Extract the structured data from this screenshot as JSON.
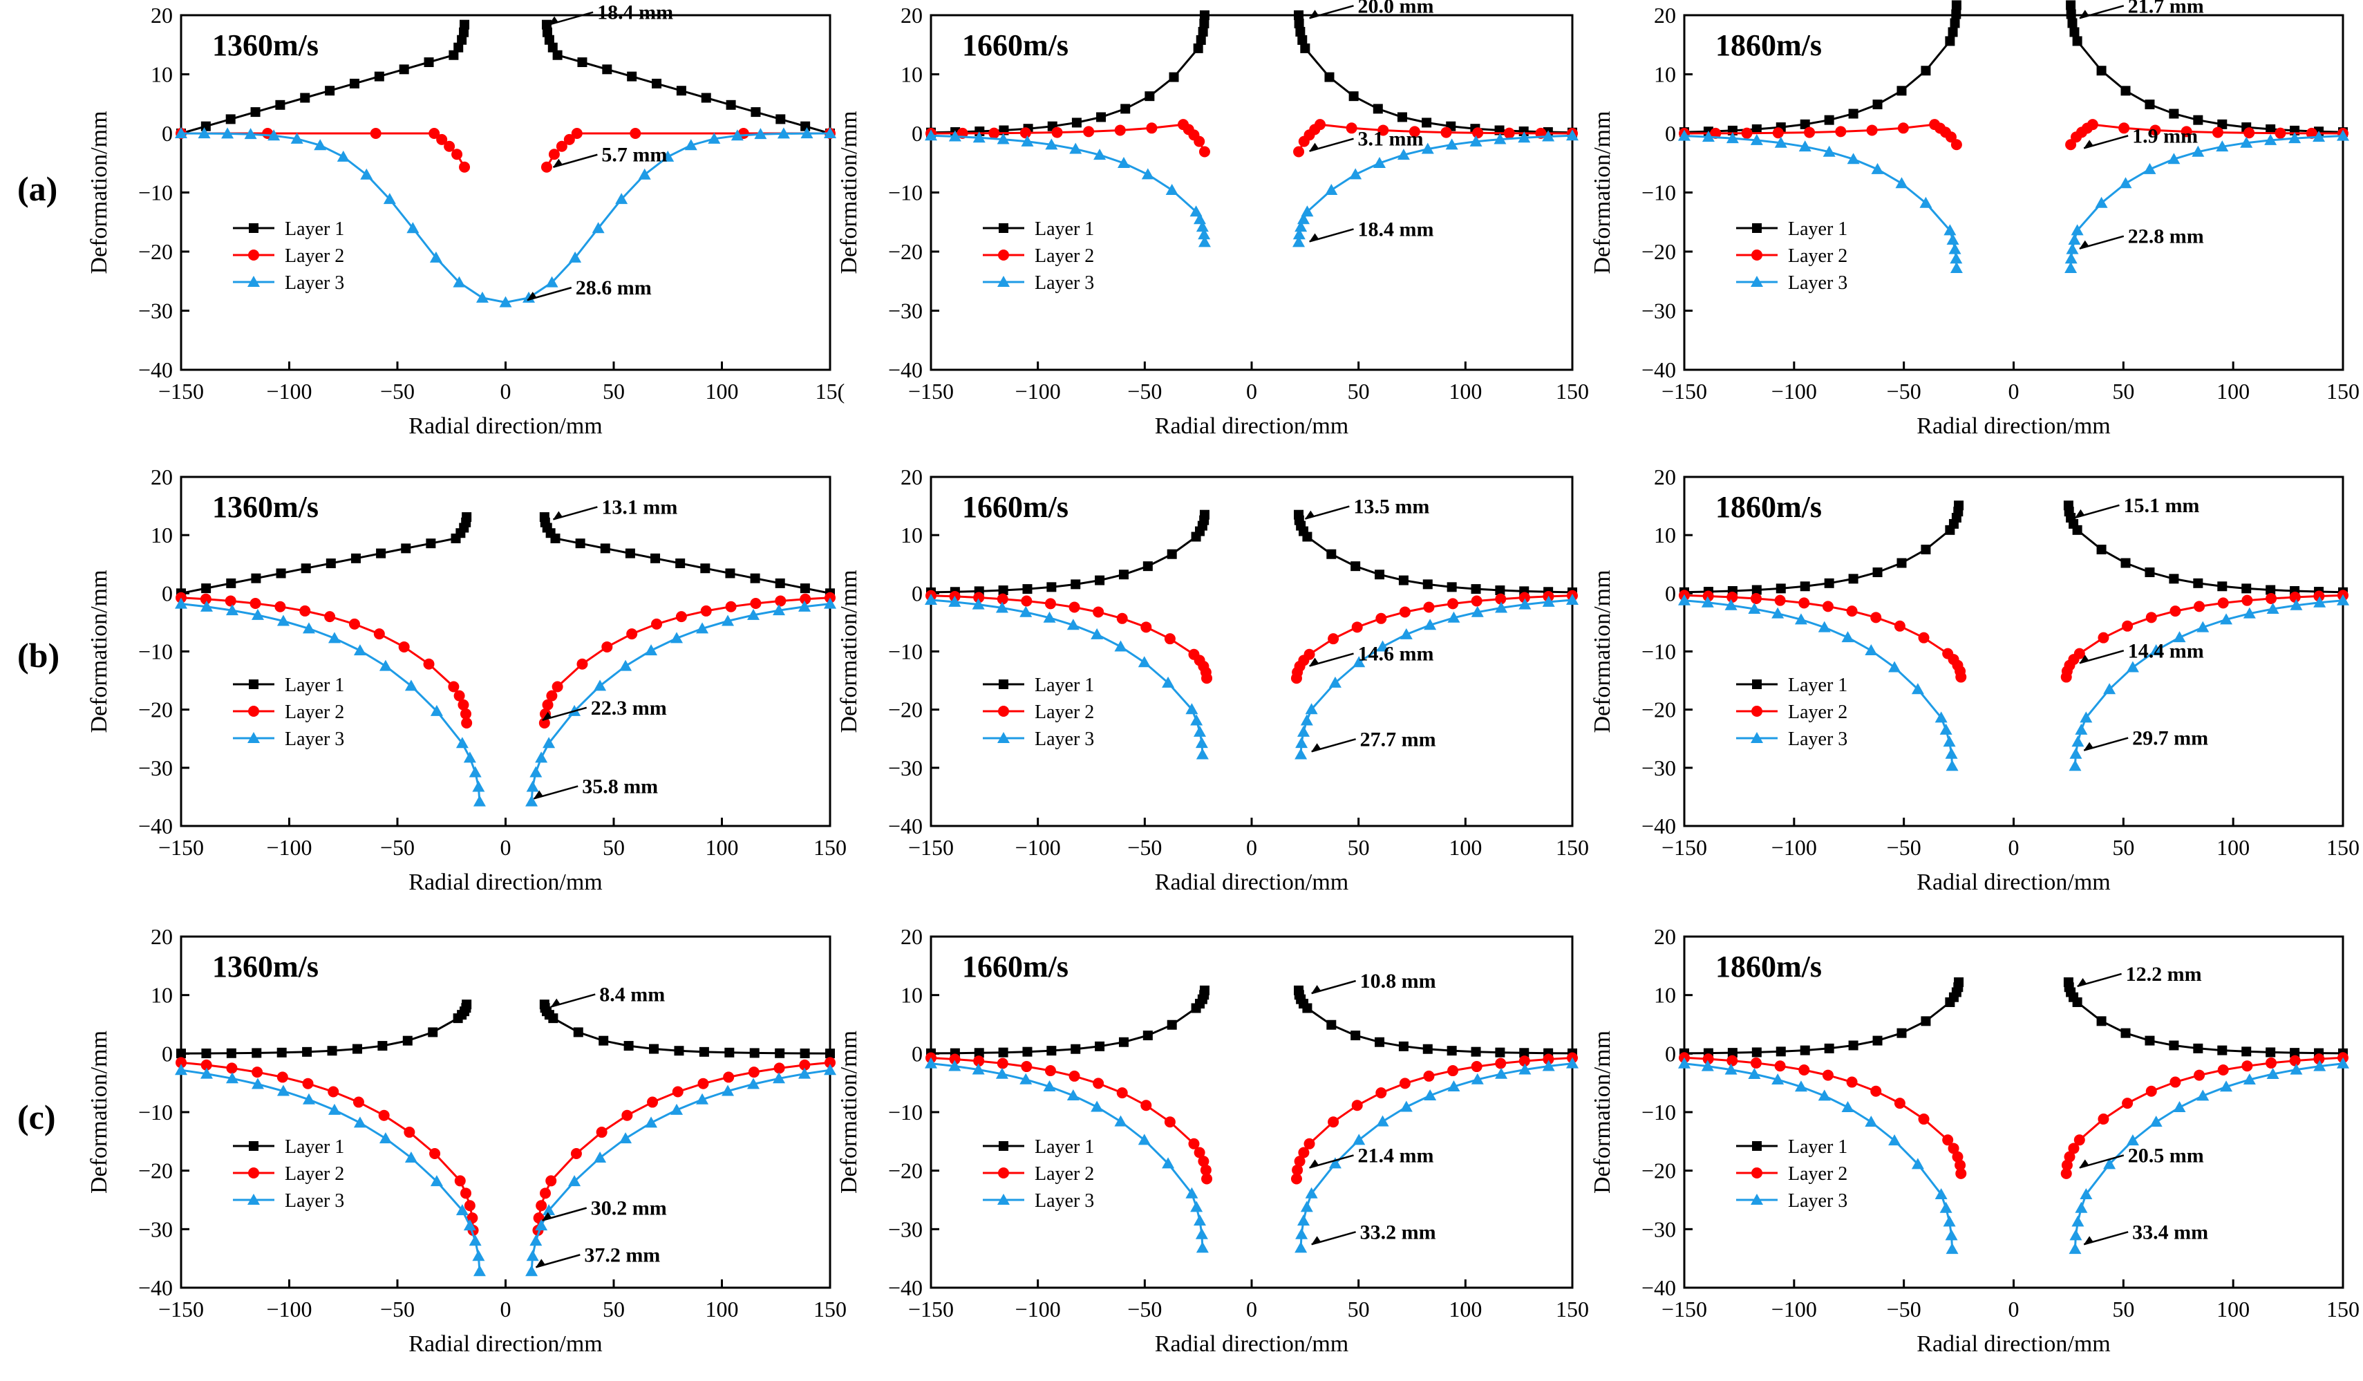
{
  "figure": {
    "row_labels": [
      "(a)",
      "(b)",
      "(c)"
    ],
    "speeds": [
      "1360m/s",
      "1660m/s",
      "1860m/s"
    ]
  },
  "colors": {
    "layer1": "#000000",
    "layer2": "#ff0000",
    "layer3": "#1e9be6"
  },
  "chart_data": [
    {
      "type": "line",
      "row": "(a)",
      "title": "1360m/s",
      "xlabel": "Radial direction/mm",
      "ylabel": "Deformation/mm",
      "xlim": [
        -150,
        150
      ],
      "ylim": [
        -40,
        20
      ],
      "xticks": [
        -150,
        -100,
        -50,
        0,
        50,
        100,
        150
      ],
      "yticks": [
        20,
        10,
        0,
        -10,
        -20,
        -30,
        -40
      ],
      "last_xtick_label": "15(",
      "series": [
        {
          "name": "Layer 1",
          "max": 18.4
        },
        {
          "name": "Layer 2",
          "max": 5.7
        },
        {
          "name": "Layer 3",
          "max": 28.6
        }
      ],
      "annotations": [
        {
          "text": "18.4 mm",
          "x": 20,
          "y": 18.4
        },
        {
          "text": "5.7 mm",
          "x": 22,
          "y": -5.7
        },
        {
          "text": "28.6 mm",
          "x": 10,
          "y": -28.2
        }
      ]
    },
    {
      "type": "line",
      "row": "(a)",
      "title": "1660m/s",
      "xlabel": "Radial direction/mm",
      "ylabel": "Deformation/mm",
      "xlim": [
        -150,
        150
      ],
      "ylim": [
        -40,
        20
      ],
      "xticks": [
        -150,
        -100,
        -50,
        0,
        50,
        100,
        150
      ],
      "yticks": [
        20,
        10,
        0,
        -10,
        -20,
        -30,
        -40
      ],
      "series": [
        {
          "name": "Layer 1",
          "max": 20.0
        },
        {
          "name": "Layer 2",
          "max": 3.1
        },
        {
          "name": "Layer 3",
          "max": 18.4
        }
      ],
      "annotations": [
        {
          "text": "20.0 mm",
          "x": 27,
          "y": 19.5
        },
        {
          "text": "3.1 mm",
          "x": 27,
          "y": -3.0
        },
        {
          "text": "18.4 mm",
          "x": 27,
          "y": -18.3
        }
      ]
    },
    {
      "type": "line",
      "row": "(a)",
      "title": "1860m/s",
      "xlabel": "Radial direction/mm",
      "ylabel": "Deformation/mm",
      "xlim": [
        -150,
        150
      ],
      "ylim": [
        -40,
        20
      ],
      "xticks": [
        -150,
        -100,
        -50,
        0,
        50,
        100,
        150
      ],
      "yticks": [
        20,
        10,
        0,
        -10,
        -20,
        -30,
        -40
      ],
      "series": [
        {
          "name": "Layer 1",
          "max": 21.7
        },
        {
          "name": "Layer 2",
          "max": 1.9
        },
        {
          "name": "Layer 3",
          "max": 22.8
        }
      ],
      "annotations": [
        {
          "text": "21.7 mm",
          "x": 30,
          "y": 19.5
        },
        {
          "text": "1.9 mm",
          "x": 32,
          "y": -2.5
        },
        {
          "text": "22.8 mm",
          "x": 30,
          "y": -19.5
        }
      ]
    },
    {
      "type": "line",
      "row": "(b)",
      "title": "1360m/s",
      "xlabel": "Radial direction/mm",
      "ylabel": "Deformation/mm",
      "xlim": [
        -150,
        150
      ],
      "ylim": [
        -40,
        20
      ],
      "xticks": [
        -150,
        -100,
        -50,
        0,
        50,
        100,
        150
      ],
      "yticks": [
        20,
        10,
        0,
        -10,
        -20,
        -30,
        -40
      ],
      "series": [
        {
          "name": "Layer 1",
          "max": 13.1
        },
        {
          "name": "Layer 2",
          "max": 22.3
        },
        {
          "name": "Layer 3",
          "max": 35.8
        }
      ],
      "annotations": [
        {
          "text": "13.1 mm",
          "x": 22,
          "y": 12.7
        },
        {
          "text": "22.3 mm",
          "x": 17,
          "y": -21.8
        },
        {
          "text": "35.8 mm",
          "x": 13,
          "y": -35.3
        }
      ]
    },
    {
      "type": "line",
      "row": "(b)",
      "title": "1660m/s",
      "xlabel": "Radial direction/mm",
      "ylabel": "Deformation/mm",
      "xlim": [
        -150,
        150
      ],
      "ylim": [
        -40,
        20
      ],
      "xticks": [
        -150,
        -100,
        -50,
        0,
        50,
        100,
        150
      ],
      "yticks": [
        20,
        10,
        0,
        -10,
        -20,
        -30,
        -40
      ],
      "series": [
        {
          "name": "Layer 1",
          "max": 13.5
        },
        {
          "name": "Layer 2",
          "max": 14.6
        },
        {
          "name": "Layer 3",
          "max": 27.7
        }
      ],
      "annotations": [
        {
          "text": "13.5 mm",
          "x": 25,
          "y": 12.8
        },
        {
          "text": "14.6 mm",
          "x": 27,
          "y": -12.5
        },
        {
          "text": "27.7 mm",
          "x": 28,
          "y": -27.2
        }
      ]
    },
    {
      "type": "line",
      "row": "(b)",
      "title": "1860m/s",
      "xlabel": "Radial direction/mm",
      "ylabel": "Deformation/mm",
      "xlim": [
        -150,
        150
      ],
      "ylim": [
        -40,
        20
      ],
      "xticks": [
        -150,
        -100,
        -50,
        0,
        50,
        100,
        150
      ],
      "yticks": [
        20,
        10,
        0,
        -10,
        -20,
        -30,
        -40
      ],
      "series": [
        {
          "name": "Layer 1",
          "max": 15.1
        },
        {
          "name": "Layer 2",
          "max": 14.4
        },
        {
          "name": "Layer 3",
          "max": 29.7
        }
      ],
      "annotations": [
        {
          "text": "15.1 mm",
          "x": 28,
          "y": 13.0
        },
        {
          "text": "14.4 mm",
          "x": 30,
          "y": -12.0
        },
        {
          "text": "29.7 mm",
          "x": 32,
          "y": -27.0
        }
      ]
    },
    {
      "type": "line",
      "row": "(c)",
      "title": "1360m/s",
      "xlabel": "Radial direction/mm",
      "ylabel": "Deformation/mm",
      "xlim": [
        -150,
        150
      ],
      "ylim": [
        -40,
        20
      ],
      "xticks": [
        -150,
        -100,
        -50,
        0,
        50,
        100,
        150
      ],
      "yticks": [
        20,
        10,
        0,
        -10,
        -20,
        -30,
        -40
      ],
      "series": [
        {
          "name": "Layer 1",
          "max": 8.4
        },
        {
          "name": "Layer 2",
          "max": 30.2
        },
        {
          "name": "Layer 3",
          "max": 37.2
        }
      ],
      "annotations": [
        {
          "text": "8.4 mm",
          "x": 21,
          "y": 8.0
        },
        {
          "text": "30.2 mm",
          "x": 17,
          "y": -28.5
        },
        {
          "text": "37.2 mm",
          "x": 14,
          "y": -36.5
        }
      ]
    },
    {
      "type": "line",
      "row": "(c)",
      "title": "1660m/s",
      "xlabel": "Radial direction/mm",
      "ylabel": "Deformation/mm",
      "xlim": [
        -150,
        150
      ],
      "ylim": [
        -40,
        20
      ],
      "xticks": [
        -150,
        -100,
        -50,
        0,
        50,
        100,
        150
      ],
      "yticks": [
        20,
        10,
        0,
        -10,
        -20,
        -30,
        -40
      ],
      "series": [
        {
          "name": "Layer 1",
          "max": 10.8
        },
        {
          "name": "Layer 2",
          "max": 21.4
        },
        {
          "name": "Layer 3",
          "max": 33.2
        }
      ],
      "annotations": [
        {
          "text": "10.8 mm",
          "x": 28,
          "y": 10.3
        },
        {
          "text": "21.4 mm",
          "x": 27,
          "y": -19.5
        },
        {
          "text": "33.2 mm",
          "x": 28,
          "y": -32.6
        }
      ]
    },
    {
      "type": "line",
      "row": "(c)",
      "title": "1860m/s",
      "xlabel": "Radial direction/mm",
      "ylabel": "Deformation/mm",
      "xlim": [
        -150,
        150
      ],
      "ylim": [
        -40,
        20
      ],
      "xticks": [
        -150,
        -100,
        -50,
        0,
        50,
        100,
        150
      ],
      "yticks": [
        20,
        10,
        0,
        -10,
        -20,
        -30,
        -40
      ],
      "series": [
        {
          "name": "Layer 1",
          "max": 12.2
        },
        {
          "name": "Layer 2",
          "max": 20.5
        },
        {
          "name": "Layer 3",
          "max": 33.4
        }
      ],
      "annotations": [
        {
          "text": "12.2 mm",
          "x": 29,
          "y": 11.5
        },
        {
          "text": "20.5 mm",
          "x": 30,
          "y": -19.5
        },
        {
          "text": "33.4 mm",
          "x": 32,
          "y": -32.6
        }
      ]
    }
  ]
}
